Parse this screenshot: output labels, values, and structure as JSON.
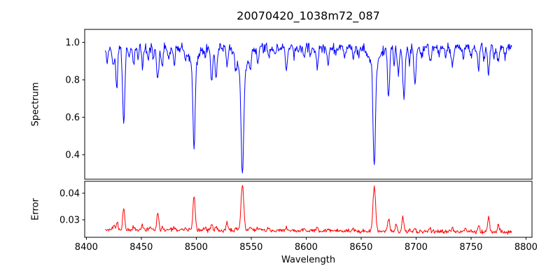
{
  "figure": {
    "title": "20070420_1038m72_087",
    "background": "#ffffff",
    "text_color": "#000000",
    "axes_edge_color": "#000000"
  },
  "chart_data": [
    {
      "type": "line",
      "name": "spectrum",
      "title": "20070420_1038m72_087",
      "xlabel": "Wavelength",
      "ylabel": "Spectrum",
      "line_color": "#0000ff",
      "grid": false,
      "legend": null,
      "xlim": [
        8398.5,
        8805.5
      ],
      "ylim": [
        0.27,
        1.07
      ],
      "yticks": [
        0.4,
        0.6,
        0.8,
        1.0
      ],
      "ytick_labels": [
        "0.4",
        "0.6",
        "0.8",
        "1.0"
      ],
      "x_start": 8417,
      "x_end": 8787,
      "x_step": 0.5,
      "continuum_flux": 0.972,
      "noise_sigma": 0.013,
      "noise_seed": 20070420,
      "absorption_lines_format": "[center_wavelength_angstrom, depth_below_continuum, gaussian_sigma_angstrom]",
      "absorption_lines": [
        [
          8419,
          0.07,
          0.7
        ],
        [
          8424.5,
          0.1,
          0.8
        ],
        [
          8427.5,
          0.22,
          0.9
        ],
        [
          8434,
          0.4,
          1.0
        ],
        [
          8438.5,
          0.06,
          0.6
        ],
        [
          8443,
          0.1,
          0.8
        ],
        [
          8447,
          0.06,
          0.6
        ],
        [
          8451,
          0.1,
          0.8
        ],
        [
          8456,
          0.07,
          0.7
        ],
        [
          8461,
          0.06,
          0.6
        ],
        [
          8465,
          0.18,
          1.0
        ],
        [
          8469,
          0.11,
          0.8
        ],
        [
          8475,
          0.06,
          0.7
        ],
        [
          8480,
          0.08,
          0.8
        ],
        [
          8490,
          0.06,
          0.7
        ],
        [
          8498,
          0.45,
          0.95
        ],
        [
          8498,
          0.09,
          4.0
        ],
        [
          8508,
          0.05,
          0.7
        ],
        [
          8514,
          0.18,
          0.9
        ],
        [
          8518,
          0.16,
          0.9
        ],
        [
          8528,
          0.1,
          0.8
        ],
        [
          8536,
          0.07,
          0.7
        ],
        [
          8542,
          0.55,
          1.15
        ],
        [
          8542,
          0.12,
          5.0
        ],
        [
          8549,
          0.07,
          0.8
        ],
        [
          8556,
          0.07,
          0.8
        ],
        [
          8566,
          0.05,
          0.7
        ],
        [
          8572,
          0.04,
          0.7
        ],
        [
          8582,
          0.12,
          0.9
        ],
        [
          8589,
          0.04,
          0.7
        ],
        [
          8598,
          0.05,
          0.7
        ],
        [
          8604,
          0.04,
          0.7
        ],
        [
          8610,
          0.1,
          0.9
        ],
        [
          8620,
          0.09,
          0.8
        ],
        [
          8627,
          0.04,
          0.7
        ],
        [
          8635,
          0.05,
          0.7
        ],
        [
          8643,
          0.06,
          0.7
        ],
        [
          8648,
          0.05,
          0.7
        ],
        [
          8662,
          0.53,
          1.05
        ],
        [
          8662,
          0.1,
          4.5
        ],
        [
          8675,
          0.26,
          1.0
        ],
        [
          8680,
          0.08,
          0.7
        ],
        [
          8684,
          0.15,
          0.8
        ],
        [
          8689,
          0.27,
          1.0
        ],
        [
          8694,
          0.08,
          0.7
        ],
        [
          8699,
          0.2,
          0.9
        ],
        [
          8705,
          0.06,
          0.7
        ],
        [
          8713,
          0.08,
          0.8
        ],
        [
          8721,
          0.05,
          0.7
        ],
        [
          8727,
          0.05,
          0.7
        ],
        [
          8733,
          0.09,
          0.9
        ],
        [
          8743,
          0.06,
          0.7
        ],
        [
          8750,
          0.05,
          0.7
        ],
        [
          8757,
          0.11,
          0.9
        ],
        [
          8762,
          0.07,
          0.7
        ],
        [
          8766,
          0.13,
          0.9
        ],
        [
          8771,
          0.06,
          0.7
        ],
        [
          8775,
          0.09,
          0.8
        ],
        [
          8781,
          0.06,
          0.7
        ]
      ],
      "deepest_lines_readoff": [
        {
          "wavelength": 8434,
          "min_flux": 0.57
        },
        {
          "wavelength": 8498,
          "min_flux": 0.44
        },
        {
          "wavelength": 8542,
          "min_flux": 0.3
        },
        {
          "wavelength": 8662,
          "min_flux": 0.34
        }
      ]
    },
    {
      "type": "line",
      "name": "error",
      "xlabel": "Wavelength",
      "ylabel": "Error",
      "line_color": "#ff0000",
      "grid": false,
      "legend": null,
      "xlim": [
        8398.5,
        8805.5
      ],
      "ylim": [
        0.0235,
        0.0445
      ],
      "yticks": [
        0.03,
        0.04
      ],
      "ytick_labels": [
        "0.03",
        "0.04"
      ],
      "xticks": [
        8400,
        8450,
        8500,
        8550,
        8600,
        8650,
        8700,
        8750,
        8800
      ],
      "xtick_labels": [
        "8400",
        "8450",
        "8500",
        "8550",
        "8600",
        "8650",
        "8700",
        "8750",
        "8800"
      ],
      "x_start": 8417,
      "x_end": 8787,
      "x_step": 0.5,
      "baseline_start": 0.0264,
      "baseline_end": 0.0255,
      "noise_sigma": 0.00035,
      "noise_seed": 1038,
      "peaks_format": "[center_wavelength_angstrom, height_above_baseline, gaussian_sigma_angstrom]",
      "peaks": [
        [
          8425,
          0.002,
          0.8
        ],
        [
          8428,
          0.0024,
          0.8
        ],
        [
          8434,
          0.008,
          0.9
        ],
        [
          8443,
          0.001,
          0.7
        ],
        [
          8451,
          0.0016,
          0.8
        ],
        [
          8458,
          0.001,
          0.7
        ],
        [
          8465,
          0.0063,
          0.9
        ],
        [
          8469,
          0.0014,
          0.7
        ],
        [
          8480,
          0.0012,
          0.8
        ],
        [
          8490,
          0.0008,
          0.7
        ],
        [
          8498,
          0.0128,
          1.0
        ],
        [
          8508,
          0.0008,
          0.7
        ],
        [
          8514,
          0.0022,
          0.8
        ],
        [
          8518,
          0.0015,
          0.8
        ],
        [
          8528,
          0.0032,
          0.8
        ],
        [
          8536,
          0.001,
          0.7
        ],
        [
          8542,
          0.0172,
          1.2
        ],
        [
          8549,
          0.0012,
          0.8
        ],
        [
          8556,
          0.0012,
          0.7
        ],
        [
          8566,
          0.0013,
          0.7
        ],
        [
          8582,
          0.0012,
          0.8
        ],
        [
          8598,
          0.0008,
          0.7
        ],
        [
          8610,
          0.001,
          0.8
        ],
        [
          8620,
          0.0008,
          0.7
        ],
        [
          8643,
          0.001,
          0.7
        ],
        [
          8662,
          0.0164,
          1.2
        ],
        [
          8675,
          0.0048,
          0.9
        ],
        [
          8682,
          0.0028,
          0.8
        ],
        [
          8688,
          0.0052,
          0.9
        ],
        [
          8694,
          0.0012,
          0.7
        ],
        [
          8699,
          0.0012,
          0.8
        ],
        [
          8713,
          0.0008,
          0.7
        ],
        [
          8733,
          0.0014,
          0.8
        ],
        [
          8745,
          0.001,
          0.7
        ],
        [
          8757,
          0.0026,
          0.8
        ],
        [
          8766,
          0.0052,
          0.9
        ],
        [
          8775,
          0.0028,
          0.8
        ]
      ],
      "tallest_peaks_readoff": [
        {
          "wavelength": 8498,
          "max_error": 0.039
        },
        {
          "wavelength": 8542,
          "max_error": 0.043
        },
        {
          "wavelength": 8662,
          "max_error": 0.042
        }
      ]
    }
  ]
}
